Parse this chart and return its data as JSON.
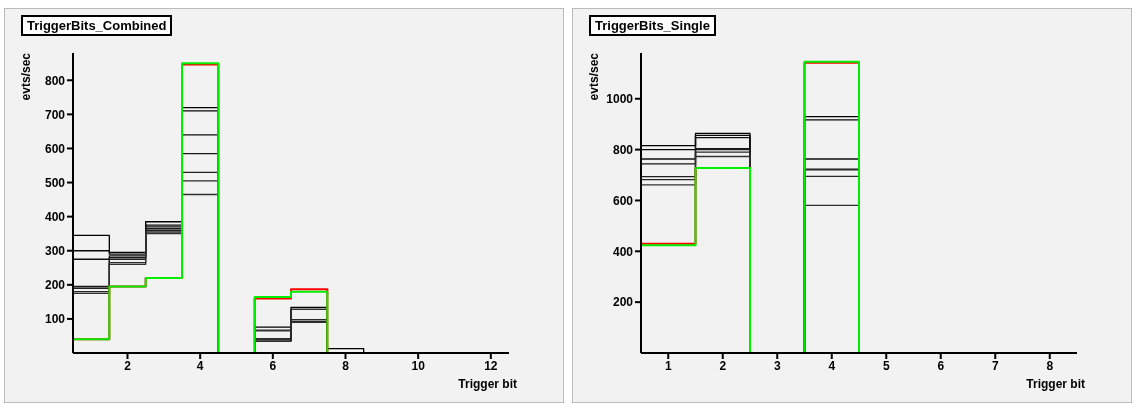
{
  "chart_data": [
    {
      "type": "histogram",
      "title": "TriggerBits_Combined",
      "xlabel": "Trigger bit",
      "ylabel": "evts/sec",
      "bins": [
        0.5,
        1.5,
        2.5,
        3.5,
        4.5,
        5.5,
        6.5,
        7.5,
        8.5,
        9.5,
        10.5,
        11.5,
        12.5
      ],
      "xlim": [
        0.5,
        12.5
      ],
      "xticks": [
        2,
        4,
        6,
        8,
        10,
        12
      ],
      "ylim": [
        0,
        880
      ],
      "yticks": [
        100,
        200,
        300,
        400,
        500,
        600,
        700,
        800
      ],
      "series": [
        {
          "color": "#000000",
          "values": [
            345,
            295,
            385,
            720,
            0,
            76,
            134,
            13,
            0,
            0,
            0,
            0
          ]
        },
        {
          "color": "#080808",
          "values": [
            300,
            290,
            375,
            710,
            0,
            66,
            128,
            0,
            0,
            0,
            0,
            0
          ]
        },
        {
          "color": "#101010",
          "values": [
            275,
            285,
            370,
            640,
            0,
            41,
            98,
            0,
            0,
            0,
            0,
            0
          ]
        },
        {
          "color": "#181818",
          "values": [
            195,
            280,
            365,
            585,
            0,
            35,
            91,
            0,
            0,
            0,
            0,
            0
          ]
        },
        {
          "color": "#202020",
          "values": [
            190,
            275,
            360,
            530,
            0,
            35,
            91,
            0,
            0,
            0,
            0,
            0
          ]
        },
        {
          "color": "#282828",
          "values": [
            180,
            265,
            355,
            505,
            0,
            41,
            98,
            0,
            0,
            0,
            0,
            0
          ]
        },
        {
          "color": "#303030",
          "values": [
            175,
            260,
            350,
            465,
            0,
            66,
            128,
            0,
            0,
            0,
            0,
            0
          ]
        },
        {
          "color": "#ff0000",
          "values": [
            40,
            195,
            220,
            846,
            0,
            160,
            187,
            0,
            0,
            0,
            0,
            0
          ]
        },
        {
          "color": "#00ee00",
          "values": [
            40,
            195,
            220,
            850,
            0,
            164,
            180,
            0,
            0,
            0,
            0,
            0
          ]
        }
      ]
    },
    {
      "type": "histogram",
      "title": "TriggerBits_Single",
      "xlabel": "Trigger bit",
      "ylabel": "evts/sec",
      "bins": [
        0.5,
        1.5,
        2.5,
        3.5,
        4.5,
        5.5,
        6.5,
        7.5,
        8.5
      ],
      "xlim": [
        0.5,
        8.5
      ],
      "xticks": [
        1,
        2,
        3,
        4,
        5,
        6,
        7,
        8
      ],
      "ylim": [
        0,
        1180
      ],
      "yticks": [
        200,
        400,
        600,
        800,
        1000
      ],
      "series": [
        {
          "color": "#000000",
          "values": [
            816,
            864,
            0,
            930,
            0,
            0,
            0,
            0
          ]
        },
        {
          "color": "#080808",
          "values": [
            800,
            856,
            0,
            917,
            0,
            0,
            0,
            0
          ]
        },
        {
          "color": "#101010",
          "values": [
            763,
            847,
            0,
            763,
            0,
            0,
            0,
            0
          ]
        },
        {
          "color": "#181818",
          "values": [
            744,
            804,
            0,
            723,
            0,
            0,
            0,
            0
          ]
        },
        {
          "color": "#202020",
          "values": [
            694,
            800,
            0,
            720,
            0,
            0,
            0,
            0
          ]
        },
        {
          "color": "#282828",
          "values": [
            682,
            790,
            0,
            695,
            0,
            0,
            0,
            0
          ]
        },
        {
          "color": "#303030",
          "values": [
            661,
            773,
            0,
            581,
            0,
            0,
            0,
            0
          ]
        },
        {
          "color": "#ff0000",
          "values": [
            430,
            728,
            0,
            1142,
            0,
            0,
            0,
            0
          ]
        },
        {
          "color": "#00ee00",
          "values": [
            424,
            728,
            0,
            1146,
            0,
            0,
            0,
            0
          ]
        }
      ]
    }
  ]
}
